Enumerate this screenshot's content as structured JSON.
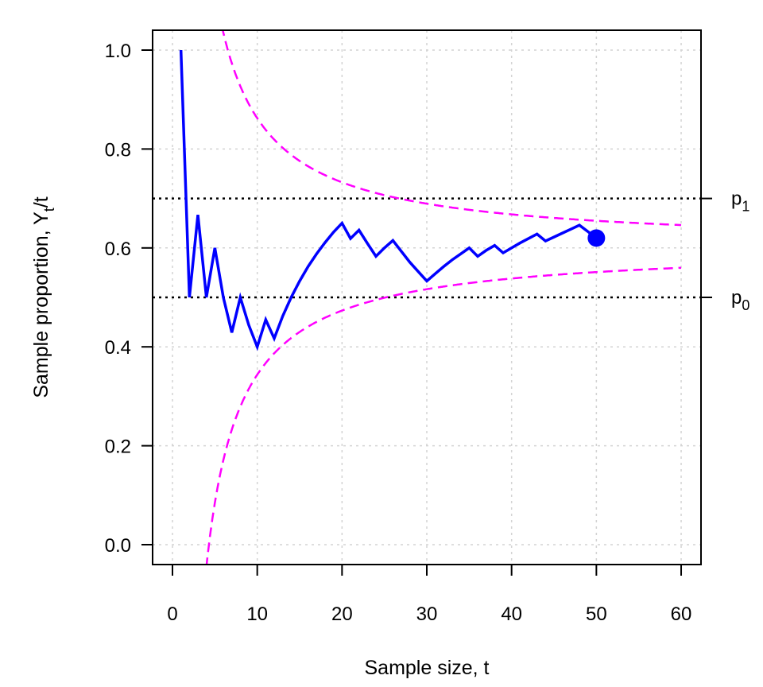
{
  "chart_data": {
    "type": "line",
    "xlabel": "Sample size, t",
    "ylabel": {
      "main": "Sample proportion, Y",
      "sub": "t",
      "tail": "/t"
    },
    "xlim": [
      -4.7,
      62
    ],
    "ylim": [
      -0.04,
      1.04
    ],
    "xticks": [
      0,
      10,
      20,
      30,
      40,
      50,
      60
    ],
    "xtick_labels": [
      "0",
      "10",
      "20",
      "30",
      "40",
      "50",
      "60"
    ],
    "yticks": [
      0.0,
      0.2,
      0.4,
      0.6,
      0.8,
      1.0
    ],
    "ytick_labels": [
      "0.0",
      "0.2",
      "0.4",
      "0.6",
      "0.8",
      "1.0"
    ],
    "grid": true,
    "series": [
      {
        "name": "Sample proportion",
        "color": "#0000ff",
        "x": [
          1,
          2,
          3,
          4,
          5,
          6,
          7,
          8,
          9,
          10,
          11,
          12,
          13,
          14,
          15,
          16,
          17,
          18,
          19,
          20,
          21,
          22,
          23,
          24,
          25,
          26,
          27,
          28,
          29,
          30,
          31,
          32,
          33,
          34,
          35,
          36,
          37,
          38,
          39,
          40,
          41,
          42,
          43,
          44,
          45,
          46,
          47,
          48,
          49,
          50
        ],
        "y": [
          1.0,
          0.5,
          0.667,
          0.5,
          0.6,
          0.5,
          0.429,
          0.5,
          0.444,
          0.4,
          0.455,
          0.417,
          0.462,
          0.5,
          0.533,
          0.5625,
          0.588,
          0.611,
          0.632,
          0.65,
          0.619,
          0.636,
          0.609,
          0.583,
          0.6,
          0.615,
          0.593,
          0.571,
          0.552,
          0.533,
          0.548,
          0.5625,
          0.576,
          0.588,
          0.6,
          0.583,
          0.595,
          0.605,
          0.59,
          0.6,
          0.61,
          0.619,
          0.628,
          0.614,
          0.622,
          0.63,
          0.638,
          0.646,
          0.633,
          0.62
        ]
      }
    ],
    "final_point": {
      "x": 50,
      "y": 0.62,
      "color": "#0000ff"
    },
    "boundaries": {
      "color": "#ff00ff",
      "slope": 0.603,
      "upper_offset": 2.593,
      "lower_offset": 2.593,
      "t_max": 60
    },
    "reference_lines": [
      {
        "y": 0.7,
        "label": "p",
        "sub": "1"
      },
      {
        "y": 0.5,
        "label": "p",
        "sub": "0"
      }
    ]
  }
}
